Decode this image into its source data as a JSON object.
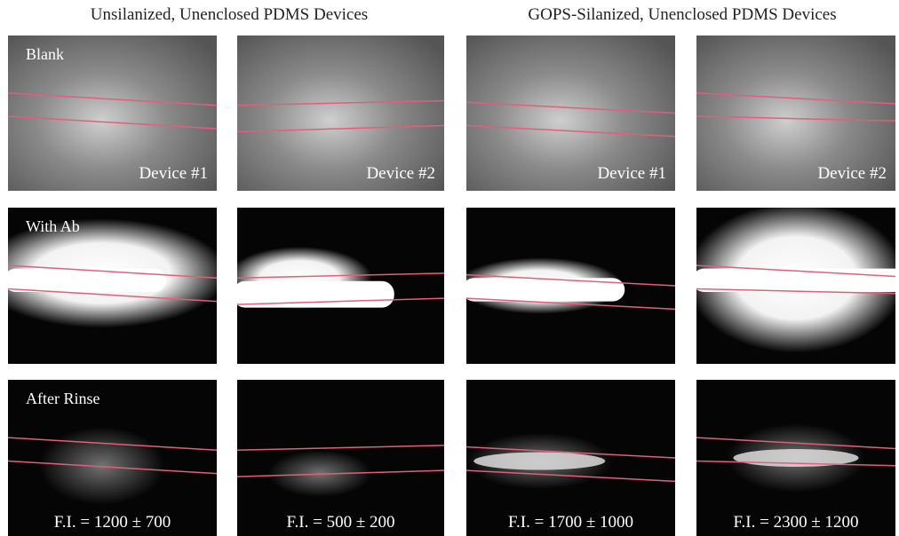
{
  "headers": [
    "Unsilanized, Unenclosed PDMS Devices",
    "GOPS-Silanized, Unenclosed PDMS Devices"
  ],
  "rows": [
    {
      "label": "Blank",
      "captions": [
        "Device #1",
        "Device #2",
        "Device #1",
        "Device #2"
      ]
    },
    {
      "label": "With Ab"
    },
    {
      "label": "After Rinse",
      "captions": [
        "F.I. = 1200 ± 700",
        "F.I. = 500 ± 200",
        "F.I. = 1700 ± 1000",
        "F.I. = 2300 ± 1200"
      ]
    }
  ]
}
